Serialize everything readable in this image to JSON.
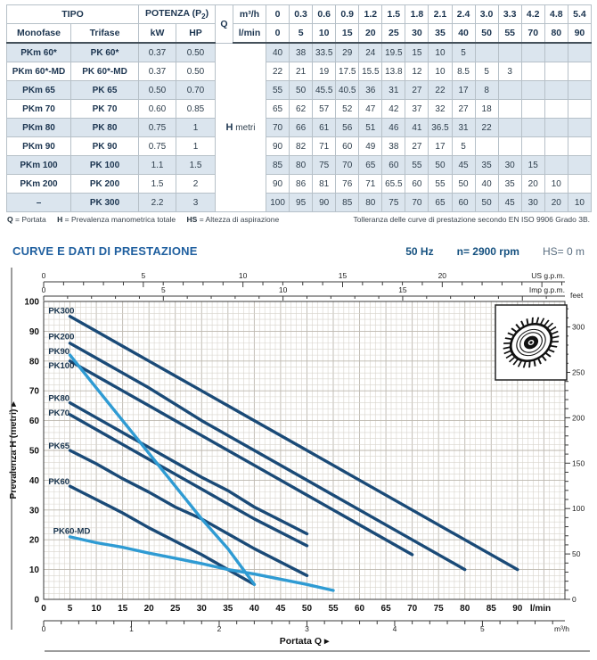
{
  "table": {
    "header": {
      "tipo": "TIPO",
      "potenza_pre": "POTENZA (P",
      "potenza_sub": "2",
      "potenza_post": ")",
      "monofase": "Monofase",
      "trifase": "Trifase",
      "kw": "kW",
      "hp": "HP",
      "q": "Q",
      "m3h": "m³/h",
      "lmin": "l/min",
      "h_label": "H",
      "h_unit": "metri",
      "m3h_values": [
        "0",
        "0.3",
        "0.6",
        "0.9",
        "1.2",
        "1.5",
        "1.8",
        "2.1",
        "2.4",
        "3.0",
        "3.3",
        "4.2",
        "4.8",
        "5.4"
      ],
      "lmin_values": [
        "0",
        "5",
        "10",
        "15",
        "20",
        "25",
        "30",
        "35",
        "40",
        "50",
        "55",
        "70",
        "80",
        "90"
      ]
    },
    "rows": [
      {
        "monofase": "PKm 60*",
        "trifase": "PK 60*",
        "kw": "0.37",
        "hp": "0.50",
        "h": [
          "40",
          "38",
          "33.5",
          "29",
          "24",
          "19.5",
          "15",
          "10",
          "5",
          "",
          "",
          "",
          "",
          ""
        ]
      },
      {
        "monofase": "PKm 60*-MD",
        "trifase": "PK 60*-MD",
        "kw": "0.37",
        "hp": "0.50",
        "h": [
          "22",
          "21",
          "19",
          "17.5",
          "15.5",
          "13.8",
          "12",
          "10",
          "8.5",
          "5",
          "3",
          "",
          "",
          ""
        ]
      },
      {
        "monofase": "PKm 65",
        "trifase": "PK 65",
        "kw": "0.50",
        "hp": "0.70",
        "h": [
          "55",
          "50",
          "45.5",
          "40.5",
          "36",
          "31",
          "27",
          "22",
          "17",
          "8",
          "",
          "",
          "",
          ""
        ]
      },
      {
        "monofase": "PKm 70",
        "trifase": "PK 70",
        "kw": "0.60",
        "hp": "0.85",
        "h": [
          "65",
          "62",
          "57",
          "52",
          "47",
          "42",
          "37",
          "32",
          "27",
          "18",
          "",
          "",
          "",
          ""
        ]
      },
      {
        "monofase": "PKm 80",
        "trifase": "PK 80",
        "kw": "0.75",
        "hp": "1",
        "h": [
          "70",
          "66",
          "61",
          "56",
          "51",
          "46",
          "41",
          "36.5",
          "31",
          "22",
          "",
          "",
          "",
          ""
        ]
      },
      {
        "monofase": "PKm 90",
        "trifase": "PK 90",
        "kw": "0.75",
        "hp": "1",
        "h": [
          "90",
          "82",
          "71",
          "60",
          "49",
          "38",
          "27",
          "17",
          "5",
          "",
          "",
          "",
          "",
          ""
        ]
      },
      {
        "monofase": "PKm 100",
        "trifase": "PK 100",
        "kw": "1.1",
        "hp": "1.5",
        "h": [
          "85",
          "80",
          "75",
          "70",
          "65",
          "60",
          "55",
          "50",
          "45",
          "35",
          "30",
          "15",
          "",
          ""
        ]
      },
      {
        "monofase": "PKm 200",
        "trifase": "PK 200",
        "kw": "1.5",
        "hp": "2",
        "h": [
          "90",
          "86",
          "81",
          "76",
          "71",
          "65.5",
          "60",
          "55",
          "50",
          "40",
          "35",
          "20",
          "10",
          ""
        ]
      },
      {
        "monofase": "–",
        "trifase": "PK 300",
        "kw": "2.2",
        "hp": "3",
        "h": [
          "100",
          "95",
          "90",
          "85",
          "80",
          "75",
          "70",
          "65",
          "60",
          "50",
          "45",
          "30",
          "20",
          "10"
        ]
      }
    ]
  },
  "legend": [
    {
      "k": "Q",
      "v": "= Portata"
    },
    {
      "k": "H",
      "v": "= Prevalenza manometrica totale"
    },
    {
      "k": "HS",
      "v": "= Altezza di aspirazione"
    }
  ],
  "tolerance": "Tolleranza delle curve di prestazione secondo EN ISO 9906 Grado 3B.",
  "section": {
    "title": "CURVE E DATI DI PRESTAZIONE",
    "freq": "50 Hz",
    "rpm": "n= 2900 rpm",
    "hs": "HS= 0 m"
  },
  "chart_data": {
    "type": "line",
    "title": "CURVE E DATI DI PRESTAZIONE",
    "xlabel": "Portata Q",
    "ylabel": "Prevalenza H (metri)",
    "x_unit_primary": "l/min",
    "x_unit_secondary": "m³/h",
    "x_unit_top1": "US g.p.m.",
    "x_unit_top2": "Imp g.p.m.",
    "y_unit_right": "feet",
    "xlim": [
      0,
      99
    ],
    "ylim": [
      0,
      100
    ],
    "grid": "on",
    "x_ticks_lmin": [
      0,
      5,
      10,
      15,
      20,
      25,
      30,
      35,
      40,
      45,
      50,
      55,
      60,
      65,
      70,
      75,
      80,
      85,
      90
    ],
    "x_ticks_m3h": [
      0,
      1,
      2,
      3,
      4,
      5
    ],
    "y_ticks_m": [
      0,
      10,
      20,
      30,
      40,
      50,
      60,
      70,
      80,
      90,
      100
    ],
    "feet_tick_labels": [
      0,
      50,
      100,
      150,
      200,
      250,
      300
    ],
    "us_gpm_tick_labels": [
      0,
      5,
      10,
      15,
      20
    ],
    "imp_gpm_tick_labels": [
      0,
      5,
      10,
      15
    ],
    "colors": {
      "navy": "#1a4a77",
      "lightblue": "#2f9bd3"
    },
    "series": [
      {
        "name": "PK300",
        "color": "navy",
        "label_at": [
          0.9,
          96.8
        ],
        "points": [
          [
            5,
            95
          ],
          [
            10,
            90
          ],
          [
            15,
            85
          ],
          [
            20,
            80
          ],
          [
            25,
            75
          ],
          [
            30,
            70
          ],
          [
            35,
            65
          ],
          [
            40,
            60
          ],
          [
            50,
            50
          ],
          [
            55,
            45
          ],
          [
            70,
            30
          ],
          [
            80,
            20
          ],
          [
            90,
            10
          ]
        ]
      },
      {
        "name": "PK200",
        "color": "navy",
        "label_at": [
          0.9,
          88.2
        ],
        "points": [
          [
            5,
            86
          ],
          [
            10,
            81
          ],
          [
            15,
            76
          ],
          [
            20,
            71
          ],
          [
            25,
            65.5
          ],
          [
            30,
            60
          ],
          [
            35,
            55
          ],
          [
            40,
            50
          ],
          [
            50,
            40
          ],
          [
            55,
            35
          ],
          [
            70,
            20
          ],
          [
            80,
            10
          ]
        ]
      },
      {
        "name": "PK100",
        "color": "navy",
        "label_at": [
          0.9,
          78.4
        ],
        "points": [
          [
            5,
            80
          ],
          [
            10,
            75
          ],
          [
            15,
            70
          ],
          [
            20,
            65
          ],
          [
            25,
            60
          ],
          [
            30,
            55
          ],
          [
            35,
            50
          ],
          [
            40,
            45
          ],
          [
            50,
            35
          ],
          [
            55,
            30
          ],
          [
            70,
            15
          ]
        ]
      },
      {
        "name": "PK80",
        "color": "navy",
        "label_at": [
          0.9,
          67.5
        ],
        "points": [
          [
            5,
            66
          ],
          [
            10,
            61
          ],
          [
            15,
            56
          ],
          [
            20,
            51
          ],
          [
            25,
            46
          ],
          [
            30,
            41
          ],
          [
            35,
            36.5
          ],
          [
            40,
            31
          ],
          [
            50,
            22
          ]
        ]
      },
      {
        "name": "PK70",
        "color": "navy",
        "label_at": [
          0.9,
          62.6
        ],
        "points": [
          [
            5,
            62
          ],
          [
            10,
            57
          ],
          [
            15,
            52
          ],
          [
            20,
            47
          ],
          [
            25,
            42
          ],
          [
            30,
            37
          ],
          [
            35,
            32
          ],
          [
            40,
            27
          ],
          [
            50,
            18
          ]
        ]
      },
      {
        "name": "PK65",
        "color": "navy",
        "label_at": [
          0.9,
          51.5
        ],
        "points": [
          [
            5,
            50
          ],
          [
            10,
            45.5
          ],
          [
            15,
            40.5
          ],
          [
            20,
            36
          ],
          [
            25,
            31
          ],
          [
            30,
            27
          ],
          [
            35,
            22
          ],
          [
            40,
            17
          ],
          [
            50,
            8
          ]
        ]
      },
      {
        "name": "PK60",
        "color": "navy",
        "label_at": [
          0.9,
          39.5
        ],
        "points": [
          [
            5,
            38
          ],
          [
            10,
            33.5
          ],
          [
            15,
            29
          ],
          [
            20,
            24
          ],
          [
            25,
            19.5
          ],
          [
            30,
            15
          ],
          [
            35,
            10
          ],
          [
            40,
            5
          ]
        ]
      },
      {
        "name": "PK90",
        "color": "lightblue",
        "label_at": [
          0.9,
          83.3
        ],
        "points": [
          [
            5,
            82
          ],
          [
            10,
            71
          ],
          [
            15,
            60
          ],
          [
            20,
            49
          ],
          [
            25,
            38
          ],
          [
            30,
            27
          ],
          [
            35,
            17
          ],
          [
            40,
            5
          ]
        ]
      },
      {
        "name": "PK60-MD",
        "color": "lightblue",
        "label_at": [
          1.8,
          22.9
        ],
        "points": [
          [
            5,
            21
          ],
          [
            10,
            19
          ],
          [
            15,
            17.5
          ],
          [
            20,
            15.5
          ],
          [
            25,
            13.8
          ],
          [
            30,
            12
          ],
          [
            35,
            10
          ],
          [
            40,
            8.5
          ],
          [
            50,
            5
          ],
          [
            55,
            3
          ]
        ]
      }
    ]
  }
}
